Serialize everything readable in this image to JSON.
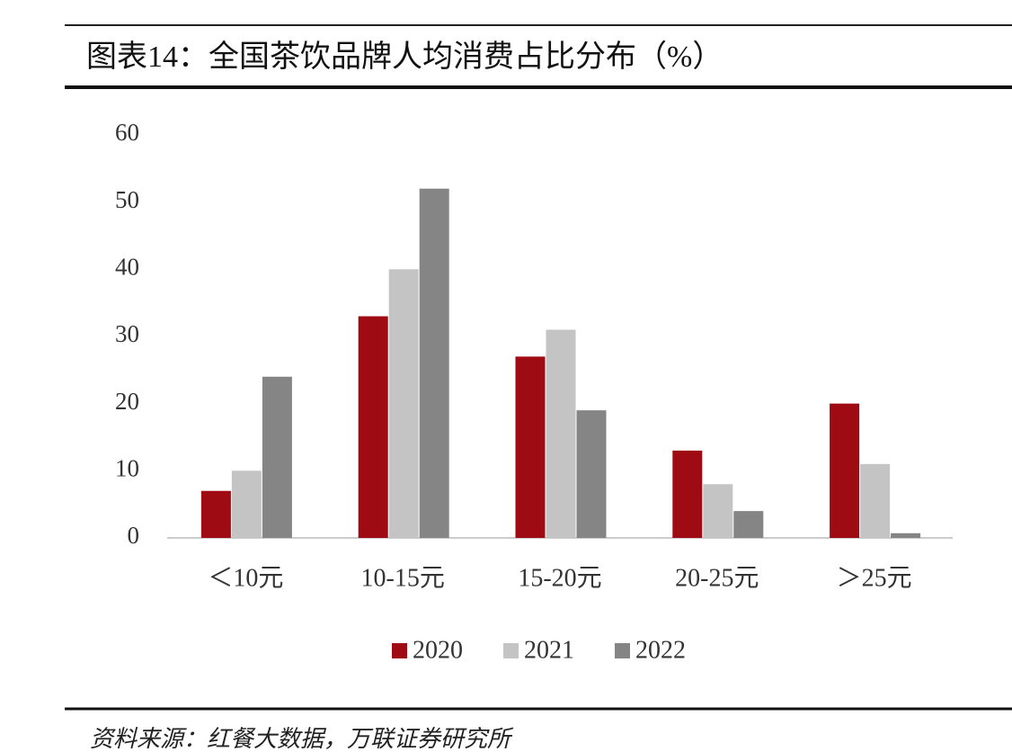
{
  "chart_data": {
    "type": "bar",
    "title": "图表14：全国茶饮品牌人均消费占比分布（%）",
    "categories": [
      "＜10元",
      "10-15元",
      "15-20元",
      "20-25元",
      "＞25元"
    ],
    "series": [
      {
        "name": "2020",
        "color": "#9e0b12",
        "values": [
          7,
          33,
          27,
          13,
          20
        ]
      },
      {
        "name": "2021",
        "color": "#c4c4c4",
        "values": [
          10,
          40,
          31,
          8,
          11
        ]
      },
      {
        "name": "2022",
        "color": "#858585",
        "values": [
          24,
          52,
          19,
          4,
          0.7
        ]
      }
    ],
    "ylim": [
      0,
      60
    ],
    "yticks": [
      0,
      10,
      20,
      30,
      40,
      50,
      60
    ],
    "source": "资料来源：红餐大数据，万联证券研究所"
  }
}
